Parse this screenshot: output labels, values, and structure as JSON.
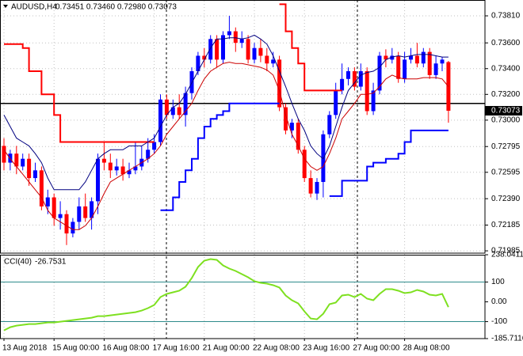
{
  "chart_data": {
    "type": "candlestick",
    "title": "AUDUSD,H4",
    "subtitle": "0.73451 0.73460 0.72980 0.73073",
    "categories": [
      "13 Aug 2018",
      null,
      null,
      null,
      null,
      null,
      null,
      null,
      "15 Aug 00:00",
      null,
      null,
      null,
      null,
      null,
      null,
      null,
      "16 Aug 08:00",
      null,
      null,
      null,
      null,
      null,
      null,
      null,
      "17 Aug 16:00",
      null,
      null,
      null,
      null,
      null,
      null,
      null,
      "21 Aug 00:00",
      null,
      null,
      null,
      null,
      null,
      null,
      null,
      "22 Aug 08:00",
      null,
      null,
      null,
      null,
      null,
      null,
      null,
      "23 Aug 16:00",
      null,
      null,
      null,
      null,
      null,
      null,
      null,
      "27 Aug 00:00",
      null,
      null,
      null,
      null,
      null,
      null,
      null,
      "28 Aug 08:00",
      null,
      null,
      null,
      null,
      null,
      null,
      null
    ],
    "open": [
      0.728,
      0.7267,
      0.7274,
      0.7264,
      0.727,
      0.7255,
      0.7261,
      0.7233,
      0.724,
      0.7224,
      0.7227,
      0.7212,
      0.7221,
      0.7233,
      0.7224,
      0.7237,
      0.727,
      0.7267,
      0.7261,
      0.7264,
      0.7258,
      0.7261,
      0.7264,
      0.727,
      0.7277,
      0.7283,
      0.7316,
      0.7304,
      0.731,
      0.7304,
      0.7321,
      0.7338,
      0.735,
      0.7347,
      0.7363,
      0.7347,
      0.7366,
      0.7369,
      0.736,
      0.7363,
      0.7347,
      0.7356,
      0.735,
      0.7344,
      0.7347,
      0.731,
      0.7292,
      0.7298,
      0.7277,
      0.7255,
      0.7243,
      0.7252,
      0.7289,
      0.7304,
      0.7323,
      0.7332,
      0.7338,
      0.7326,
      0.7338,
      0.7307,
      0.7323,
      0.735,
      0.7347,
      0.735,
      0.7332,
      0.7347,
      0.735,
      0.7344,
      0.7353,
      0.7335,
      0.7344,
      0.73451
    ],
    "high": [
      0.7286,
      0.7277,
      0.728,
      0.7274,
      0.7274,
      0.7267,
      0.7264,
      0.7246,
      0.7243,
      0.7237,
      0.723,
      0.7224,
      0.724,
      0.7243,
      0.724,
      0.7274,
      0.7283,
      0.7274,
      0.727,
      0.727,
      0.7267,
      0.7283,
      0.728,
      0.7286,
      0.7289,
      0.732,
      0.732,
      0.7316,
      0.732,
      0.7326,
      0.7341,
      0.7353,
      0.7356,
      0.7366,
      0.7366,
      0.7369,
      0.7381,
      0.7372,
      0.7369,
      0.7366,
      0.736,
      0.7363,
      0.7356,
      0.7353,
      0.735,
      0.7313,
      0.7301,
      0.7301,
      0.728,
      0.7261,
      0.7255,
      0.7292,
      0.7307,
      0.7329,
      0.7344,
      0.7341,
      0.7341,
      0.7344,
      0.7341,
      0.7329,
      0.7353,
      0.7355,
      0.7356,
      0.7353,
      0.7353,
      0.7356,
      0.736,
      0.7356,
      0.7356,
      0.735,
      0.7349,
      0.7346
    ],
    "low": [
      0.7261,
      0.7261,
      0.7258,
      0.7261,
      0.7249,
      0.7252,
      0.723,
      0.7227,
      0.7218,
      0.7215,
      0.7203,
      0.7209,
      0.7215,
      0.7221,
      0.7215,
      0.7227,
      0.7261,
      0.7255,
      0.7257,
      0.7253,
      0.7255,
      0.7258,
      0.7261,
      0.7267,
      0.7274,
      0.728,
      0.7301,
      0.7301,
      0.7301,
      0.7295,
      0.7316,
      0.7335,
      0.7341,
      0.7344,
      0.7341,
      0.7344,
      0.7363,
      0.7353,
      0.7356,
      0.7344,
      0.7344,
      0.7345,
      0.7338,
      0.7341,
      0.7307,
      0.7289,
      0.7286,
      0.7274,
      0.7252,
      0.724,
      0.7238,
      0.724,
      0.7286,
      0.7301,
      0.732,
      0.7327,
      0.7323,
      0.7323,
      0.7304,
      0.7304,
      0.732,
      0.7341,
      0.7344,
      0.7329,
      0.7329,
      0.7344,
      0.7341,
      0.7341,
      0.7332,
      0.7332,
      0.7338,
      0.7298
    ],
    "close": [
      0.7267,
      0.7274,
      0.7264,
      0.727,
      0.7255,
      0.7261,
      0.7233,
      0.724,
      0.7224,
      0.7227,
      0.7212,
      0.7221,
      0.7233,
      0.7224,
      0.7237,
      0.727,
      0.7267,
      0.7261,
      0.7264,
      0.7258,
      0.7261,
      0.7264,
      0.727,
      0.7277,
      0.7283,
      0.7316,
      0.7304,
      0.731,
      0.7304,
      0.7321,
      0.7338,
      0.735,
      0.7347,
      0.7363,
      0.7347,
      0.7366,
      0.7369,
      0.736,
      0.7363,
      0.7347,
      0.7356,
      0.735,
      0.7344,
      0.7347,
      0.731,
      0.7292,
      0.7298,
      0.7277,
      0.7255,
      0.7243,
      0.7252,
      0.7289,
      0.7304,
      0.7323,
      0.7332,
      0.7338,
      0.7326,
      0.7338,
      0.7307,
      0.7323,
      0.735,
      0.7347,
      0.735,
      0.7332,
      0.7347,
      0.735,
      0.7344,
      0.7353,
      0.7335,
      0.7344,
      0.7347,
      0.73073
    ],
    "up_color": "#0000ff",
    "down_color": "#ff0000",
    "overlays": [
      {
        "color": "#ff0000",
        "step": true,
        "values": [
          0.7359,
          0.7359,
          0.7359,
          0.7356,
          0.7338,
          0.7338,
          0.732,
          0.732,
          0.7304,
          0.7283,
          0.7283,
          0.7283,
          0.7283,
          0.7283,
          0.7283,
          0.7283,
          0.7283,
          0.7283,
          0.7283,
          0.7283,
          0.7283,
          0.7283,
          0.7283,
          0.7283,
          0.7283,
          null,
          null,
          null,
          null,
          null,
          null,
          null,
          null,
          null,
          null,
          null,
          null,
          null,
          null,
          null,
          null,
          null,
          null,
          null,
          0.739,
          0.7369,
          0.7356,
          0.7344,
          0.7323,
          0.7323,
          0.7323,
          0.7323,
          0.7323,
          0.7323,
          0.7323,
          null,
          null,
          null,
          null,
          null,
          null,
          null,
          null,
          null,
          null,
          null,
          null,
          null,
          null,
          null,
          null,
          null
        ]
      },
      {
        "color": "#0000ff",
        "step": true,
        "values": [
          null,
          null,
          null,
          null,
          null,
          null,
          null,
          null,
          null,
          null,
          null,
          null,
          null,
          null,
          null,
          null,
          null,
          null,
          null,
          null,
          null,
          null,
          null,
          null,
          null,
          0.723,
          0.723,
          0.724,
          0.7252,
          0.7261,
          0.727,
          0.7286,
          0.7295,
          0.7301,
          0.7304,
          0.7307,
          0.7313,
          0.7313,
          0.7313,
          0.7313,
          0.7313,
          0.7313,
          0.7313,
          0.7313,
          0.7313,
          null,
          null,
          null,
          null,
          null,
          null,
          null,
          0.7241,
          0.7241,
          0.7253,
          0.7253,
          0.7253,
          0.7253,
          0.7264,
          0.7267,
          0.7267,
          0.727,
          0.727,
          0.7274,
          0.7283,
          0.7292,
          0.7292,
          0.7292,
          0.7292,
          0.7292,
          0.7292,
          0.7292
        ]
      },
      {
        "color": "#000080",
        "step": false,
        "values": [
          0.7304,
          0.7295,
          0.7286,
          0.7283,
          0.728,
          0.7274,
          0.7267,
          0.7255,
          0.7246,
          0.7246,
          0.7246,
          0.7246,
          0.7246,
          0.7252,
          0.7261,
          0.727,
          0.7274,
          0.7277,
          0.7277,
          0.7277,
          0.728,
          0.728,
          0.728,
          0.7283,
          0.7286,
          0.7295,
          0.7304,
          0.731,
          0.7313,
          0.732,
          0.7329,
          0.7338,
          0.7347,
          0.7356,
          0.7363,
          0.7363,
          0.7364,
          0.7364,
          0.7363,
          0.7364,
          0.7366,
          0.7363,
          0.7359,
          0.735,
          0.7338,
          0.7326,
          0.7313,
          0.7301,
          0.7292,
          0.728,
          0.7274,
          0.727,
          0.728,
          0.7295,
          0.731,
          0.7323,
          0.7329,
          0.7335,
          0.7337,
          0.7338,
          0.7341,
          0.7347,
          0.7349,
          0.735,
          0.7349,
          0.735,
          0.7351,
          0.7351,
          0.7351,
          0.735,
          0.7349,
          0.7349
        ]
      },
      {
        "color": "#cc0000",
        "step": false,
        "values": [
          0.7277,
          0.727,
          0.7264,
          0.7258,
          0.7252,
          0.7246,
          0.724,
          0.723,
          0.7224,
          0.7221,
          0.7218,
          0.7215,
          0.7215,
          0.7218,
          0.7224,
          0.7233,
          0.7243,
          0.7252,
          0.7255,
          0.7258,
          0.7261,
          0.7264,
          0.7267,
          0.727,
          0.7274,
          0.728,
          0.7289,
          0.7295,
          0.7301,
          0.7307,
          0.7313,
          0.7323,
          0.7332,
          0.7338,
          0.7341,
          0.7344,
          0.7345,
          0.7344,
          0.7344,
          0.7343,
          0.7342,
          0.7341,
          0.7339,
          0.7335,
          0.7323,
          0.7304,
          0.7289,
          0.728,
          0.727,
          0.7264,
          0.7261,
          0.7264,
          0.7274,
          0.7286,
          0.7301,
          0.7307,
          0.7313,
          0.732,
          0.732,
          0.7321,
          0.7326,
          0.7332,
          0.7335,
          0.7333,
          0.7332,
          0.7332,
          0.7332,
          0.7333,
          0.7333,
          0.7333,
          0.7332,
          0.7326
        ]
      }
    ],
    "hline": 0.7313,
    "hline_color": "#000000",
    "last_price": {
      "value": 0.73073,
      "label": "0.73073"
    },
    "ylim": [
      0.71967,
      0.73933
    ],
    "yticks": [
      {
        "value": 0.7381,
        "label": "0.73810"
      },
      {
        "value": 0.736,
        "label": "0.73600"
      },
      {
        "value": 0.734,
        "label": "0.73400"
      },
      {
        "value": 0.732,
        "label": "0.73200"
      },
      {
        "value": 0.73,
        "label": "0.73000"
      },
      0.72795,
      0.72595,
      {
        "value": 0.7239,
        "label": "0.72390"
      },
      0.72185,
      0.71985
    ],
    "grid": true,
    "indicator": {
      "type": "line",
      "title": "CCI(40)",
      "value": -26.7531,
      "color": "#7ee020",
      "values": [
        -144,
        -128,
        -120,
        -116,
        -112,
        -112,
        -108,
        -104,
        -104,
        -100,
        -96,
        -92,
        -88,
        -84,
        -80,
        -72,
        -72,
        -68,
        -64,
        -60,
        -56,
        -52,
        -44,
        -32,
        -16,
        24,
        40,
        48,
        56,
        76,
        120,
        176,
        208,
        216,
        212,
        184,
        168,
        156,
        140,
        124,
        104,
        96,
        92,
        84,
        72,
        32,
        8,
        -8,
        -48,
        -84,
        -88,
        -60,
        -12,
        -4,
        32,
        36,
        24,
        40,
        16,
        8,
        40,
        64,
        64,
        56,
        44,
        48,
        60,
        52,
        36,
        32,
        40,
        -26.7531
      ],
      "ylim": [
        -185.7116,
        238.0411
      ],
      "yticks": [
        238.0411,
        100,
        {
          "value": 0,
          "label": "0.00"
        },
        -100,
        -185.7116
      ],
      "levels": [
        100,
        -100
      ],
      "level_color": "#2e8b8b"
    }
  }
}
